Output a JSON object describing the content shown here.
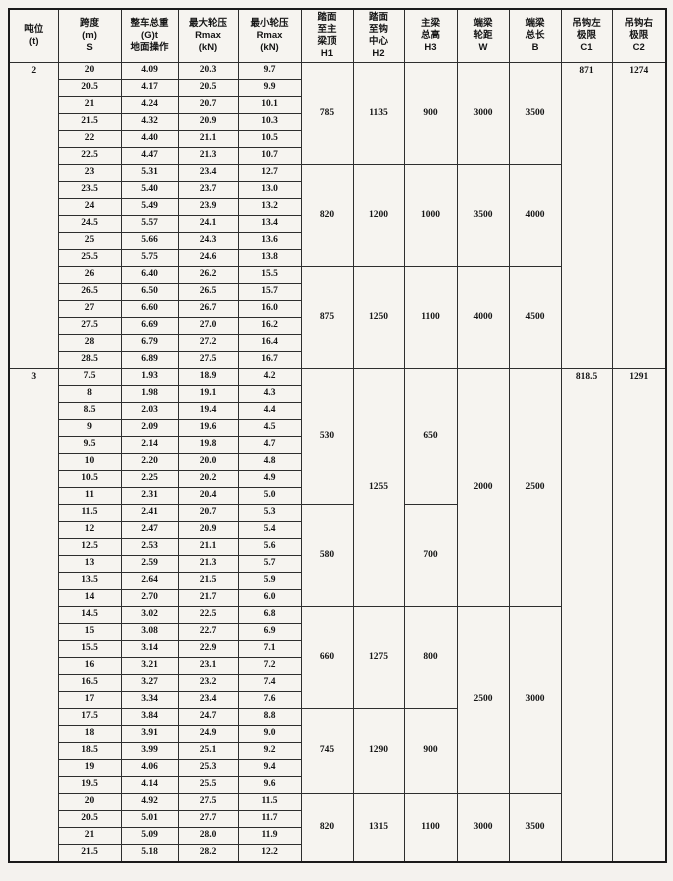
{
  "page": {
    "background": "#f4f2ee",
    "table_background": "#f6f4f0",
    "border_color": "#2e2e2e",
    "outer_border_color": "#1a1a1a",
    "text_color": "#141414"
  },
  "table": {
    "headers": [
      {
        "id": "tonnage",
        "label": "吨位\n(t)"
      },
      {
        "id": "span",
        "label": "跨度\n(m)\nS"
      },
      {
        "id": "total-weight",
        "label": "整车总重\n(G)t\n地面操作"
      },
      {
        "id": "max-wheel-pressure",
        "label": "最大轮压\nRmax\n(kN)"
      },
      {
        "id": "min-wheel-pressure",
        "label": "最小轮压\nRmax\n(kN)"
      },
      {
        "id": "h1",
        "label": "踏面\n至主\n梁顶\nH1"
      },
      {
        "id": "h2",
        "label": "踏面\n至钩\n中心\nH2"
      },
      {
        "id": "h3",
        "label": "主梁\n总高\nH3"
      },
      {
        "id": "w",
        "label": "端梁\n轮距\nW"
      },
      {
        "id": "b",
        "label": "端梁\n总长\nB"
      },
      {
        "id": "c1",
        "label": "吊钩左\n极限\nC1"
      },
      {
        "id": "c2",
        "label": "吊钩右\n极限\nC2"
      }
    ],
    "sections": [
      {
        "tonnage": "2",
        "rows": [
          [
            "20",
            "4.09",
            "20.3",
            "9.7"
          ],
          [
            "20.5",
            "4.17",
            "20.5",
            "9.9"
          ],
          [
            "21",
            "4.24",
            "20.7",
            "10.1"
          ],
          [
            "21.5",
            "4.32",
            "20.9",
            "10.3"
          ],
          [
            "22",
            "4.40",
            "21.1",
            "10.5"
          ],
          [
            "22.5",
            "4.47",
            "21.3",
            "10.7"
          ],
          [
            "23",
            "5.31",
            "23.4",
            "12.7"
          ],
          [
            "23.5",
            "5.40",
            "23.7",
            "13.0"
          ],
          [
            "24",
            "5.49",
            "23.9",
            "13.2"
          ],
          [
            "24.5",
            "5.57",
            "24.1",
            "13.4"
          ],
          [
            "25",
            "5.66",
            "24.3",
            "13.6"
          ],
          [
            "25.5",
            "5.75",
            "24.6",
            "13.8"
          ],
          [
            "26",
            "6.40",
            "26.2",
            "15.5"
          ],
          [
            "26.5",
            "6.50",
            "26.5",
            "15.7"
          ],
          [
            "27",
            "6.60",
            "26.7",
            "16.0"
          ],
          [
            "27.5",
            "6.69",
            "27.0",
            "16.2"
          ],
          [
            "28",
            "6.79",
            "27.2",
            "16.4"
          ],
          [
            "28.5",
            "6.89",
            "27.5",
            "16.7"
          ]
        ],
        "merged": {
          "tonnage": [
            [
              18,
              "2"
            ]
          ],
          "h1": [
            [
              6,
              "785"
            ],
            [
              6,
              "820"
            ],
            [
              6,
              "875"
            ]
          ],
          "h2": [
            [
              6,
              "1135"
            ],
            [
              6,
              "1200"
            ],
            [
              6,
              "1250"
            ]
          ],
          "h3": [
            [
              6,
              "900"
            ],
            [
              6,
              "1000"
            ],
            [
              6,
              "1100"
            ]
          ],
          "w": [
            [
              6,
              "3000"
            ],
            [
              6,
              "3500"
            ],
            [
              6,
              "4000"
            ]
          ],
          "b": [
            [
              6,
              "3500"
            ],
            [
              6,
              "4000"
            ],
            [
              6,
              "4500"
            ]
          ],
          "c1": [
            [
              18,
              "871"
            ]
          ],
          "c2": [
            [
              18,
              "1274"
            ]
          ]
        }
      },
      {
        "tonnage": "3",
        "rows": [
          [
            "7.5",
            "1.93",
            "18.9",
            "4.2"
          ],
          [
            "8",
            "1.98",
            "19.1",
            "4.3"
          ],
          [
            "8.5",
            "2.03",
            "19.4",
            "4.4"
          ],
          [
            "9",
            "2.09",
            "19.6",
            "4.5"
          ],
          [
            "9.5",
            "2.14",
            "19.8",
            "4.7"
          ],
          [
            "10",
            "2.20",
            "20.0",
            "4.8"
          ],
          [
            "10.5",
            "2.25",
            "20.2",
            "4.9"
          ],
          [
            "11",
            "2.31",
            "20.4",
            "5.0"
          ],
          [
            "11.5",
            "2.41",
            "20.7",
            "5.3"
          ],
          [
            "12",
            "2.47",
            "20.9",
            "5.4"
          ],
          [
            "12.5",
            "2.53",
            "21.1",
            "5.6"
          ],
          [
            "13",
            "2.59",
            "21.3",
            "5.7"
          ],
          [
            "13.5",
            "2.64",
            "21.5",
            "5.9"
          ],
          [
            "14",
            "2.70",
            "21.7",
            "6.0"
          ],
          [
            "14.5",
            "3.02",
            "22.5",
            "6.8"
          ],
          [
            "15",
            "3.08",
            "22.7",
            "6.9"
          ],
          [
            "15.5",
            "3.14",
            "22.9",
            "7.1"
          ],
          [
            "16",
            "3.21",
            "23.1",
            "7.2"
          ],
          [
            "16.5",
            "3.27",
            "23.2",
            "7.4"
          ],
          [
            "17",
            "3.34",
            "23.4",
            "7.6"
          ],
          [
            "17.5",
            "3.84",
            "24.7",
            "8.8"
          ],
          [
            "18",
            "3.91",
            "24.9",
            "9.0"
          ],
          [
            "18.5",
            "3.99",
            "25.1",
            "9.2"
          ],
          [
            "19",
            "4.06",
            "25.3",
            "9.4"
          ],
          [
            "19.5",
            "4.14",
            "25.5",
            "9.6"
          ],
          [
            "20",
            "4.92",
            "27.5",
            "11.5"
          ],
          [
            "20.5",
            "5.01",
            "27.7",
            "11.7"
          ],
          [
            "21",
            "5.09",
            "28.0",
            "11.9"
          ],
          [
            "21.5",
            "5.18",
            "28.2",
            "12.2"
          ]
        ],
        "merged": {
          "tonnage": [
            [
              29,
              "3"
            ]
          ],
          "h1": [
            [
              8,
              "530"
            ],
            [
              6,
              "580"
            ],
            [
              6,
              "660"
            ],
            [
              5,
              "745"
            ],
            [
              4,
              "820"
            ]
          ],
          "h2": [
            [
              14,
              "1255"
            ],
            [
              6,
              "1275"
            ],
            [
              5,
              "1290"
            ],
            [
              4,
              "1315"
            ]
          ],
          "h3": [
            [
              8,
              "650"
            ],
            [
              6,
              "700"
            ],
            [
              6,
              "800"
            ],
            [
              5,
              "900"
            ],
            [
              4,
              "1100"
            ]
          ],
          "w": [
            [
              14,
              "2000"
            ],
            [
              11,
              "2500"
            ],
            [
              4,
              "3000"
            ]
          ],
          "b": [
            [
              14,
              "2500"
            ],
            [
              11,
              "3000"
            ],
            [
              4,
              "3500"
            ]
          ],
          "c1": [
            [
              29,
              "818.5"
            ]
          ],
          "c2": [
            [
              29,
              "1291"
            ]
          ]
        }
      }
    ]
  }
}
